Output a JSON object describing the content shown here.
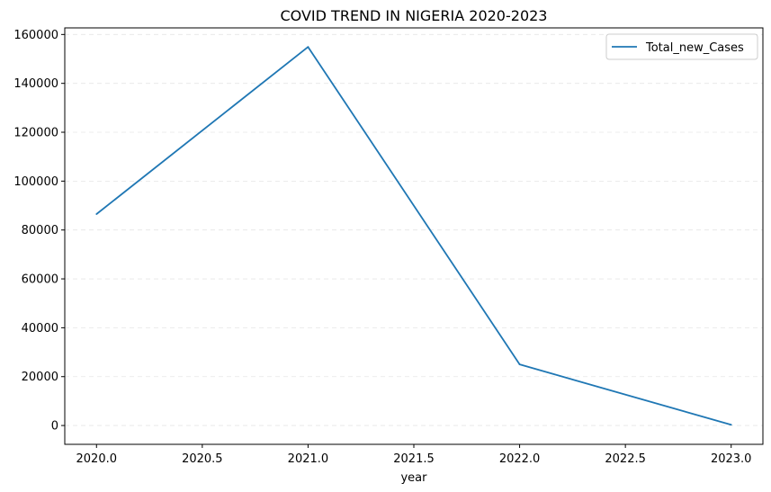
{
  "chart_data": {
    "type": "line",
    "title": "COVID TREND IN NIGERIA 2020-2023",
    "xlabel": "year",
    "ylabel": "",
    "x": [
      2020,
      2021,
      2022,
      2023
    ],
    "series": [
      {
        "name": "Total_new_Cases",
        "values": [
          86500,
          154900,
          25000,
          300
        ],
        "color": "#1f77b4"
      }
    ],
    "xlim": [
      2019.85,
      2023.15
    ],
    "ylim": [
      -7700,
      162700
    ],
    "xticks": [
      2020.0,
      2020.5,
      2021.0,
      2021.5,
      2022.0,
      2022.5,
      2023.0
    ],
    "xtick_labels": [
      "2020.0",
      "2020.5",
      "2021.0",
      "2021.5",
      "2022.0",
      "2022.5",
      "2023.0"
    ],
    "yticks": [
      0,
      20000,
      40000,
      60000,
      80000,
      100000,
      120000,
      140000,
      160000
    ],
    "ytick_labels": [
      "0",
      "20000",
      "40000",
      "60000",
      "80000",
      "100000",
      "120000",
      "140000",
      "160000"
    ],
    "grid": "y-dashed",
    "legend_position": "top-right"
  }
}
